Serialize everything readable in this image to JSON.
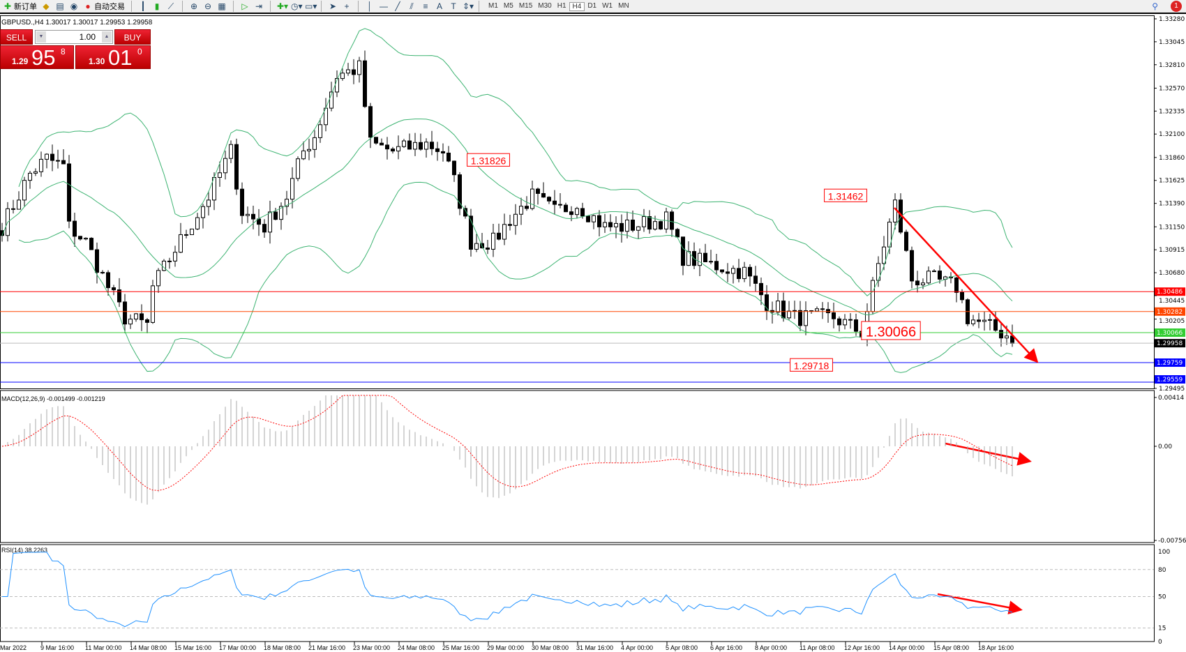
{
  "toolbar": {
    "new_order": "新订单",
    "auto_trading": "自动交易",
    "timeframes": [
      "M1",
      "M5",
      "M15",
      "M30",
      "H1",
      "H4",
      "D1",
      "W1",
      "MN"
    ],
    "active_timeframe": "H4",
    "notifications": "1"
  },
  "chart": {
    "title": "GBPUSD.,H4  1.30017 1.30017 1.29953 1.29958",
    "trade": {
      "sell": "SELL",
      "buy": "BUY",
      "lot": "1.00",
      "bid_prefix": "1.29",
      "bid_big": "95",
      "bid_sup": "8",
      "ask_prefix": "1.30",
      "ask_big": "01",
      "ask_sup": "0"
    },
    "price_labels": [
      "1.33280",
      "1.33045",
      "1.32810",
      "1.32570",
      "1.32335",
      "1.32100",
      "1.31860",
      "1.31625",
      "1.31390",
      "1.31150",
      "1.30915",
      "1.30680",
      "1.30445",
      "1.30205",
      "1.29495"
    ],
    "hlines": [
      {
        "price": 1.30486,
        "label": "1.30486",
        "color": "#ff0000"
      },
      {
        "price": 1.30282,
        "label": "1.30282",
        "color": "#ff4500"
      },
      {
        "price": 1.30066,
        "label": "1.30066",
        "color": "#32cd32"
      },
      {
        "price": 1.29958,
        "label": "1.29958",
        "color": "#000000"
      },
      {
        "price": 1.29759,
        "label": "1.29759",
        "color": "#0000ff"
      },
      {
        "price": 1.29559,
        "label": "1.29559",
        "color": "#0000ff"
      }
    ],
    "annotations": [
      "1.31826",
      "1.31462",
      "1.30066",
      "1.29718"
    ],
    "close_path": [
      [
        0,
        1.31151
      ],
      [
        5,
        1.31693
      ],
      [
        8,
        1.31848
      ],
      [
        11,
        1.3177
      ],
      [
        12,
        1.31151
      ],
      [
        15,
        1.30996
      ],
      [
        19,
        1.30532
      ],
      [
        22,
        1.30222
      ],
      [
        26,
        1.30145
      ],
      [
        27,
        1.30532
      ],
      [
        31,
        1.30919
      ],
      [
        37,
        1.31461
      ],
      [
        41,
        1.31925
      ],
      [
        43,
        1.31306
      ],
      [
        47,
        1.31151
      ],
      [
        51,
        1.31461
      ],
      [
        54,
        1.31925
      ],
      [
        56,
        1.3208
      ],
      [
        60,
        1.32699
      ],
      [
        64,
        1.32777
      ],
      [
        66,
        1.32002
      ],
      [
        70,
        1.31925
      ],
      [
        76,
        1.32002
      ],
      [
        79,
        1.31925
      ],
      [
        81,
        1.31615
      ],
      [
        84,
        1.30996
      ],
      [
        88,
        1.30996
      ],
      [
        91,
        1.31228
      ],
      [
        95,
        1.31461
      ],
      [
        99,
        1.31306
      ],
      [
        103,
        1.31383
      ],
      [
        108,
        1.31151
      ],
      [
        112,
        1.31151
      ],
      [
        119,
        1.31228
      ],
      [
        122,
        1.30841
      ],
      [
        127,
        1.30764
      ],
      [
        133,
        1.30687
      ],
      [
        137,
        1.30377
      ],
      [
        142,
        1.30222
      ],
      [
        149,
        1.30222
      ],
      [
        154,
        1.30067
      ],
      [
        157,
        1.30764
      ],
      [
        160,
        1.31383
      ],
      [
        163,
        1.30609
      ],
      [
        167,
        1.30609
      ],
      [
        171,
        1.30532
      ],
      [
        173,
        1.30222
      ],
      [
        176,
        1.30145
      ],
      [
        182,
        1.2999
      ]
    ],
    "bollinger_color": "#3cb371",
    "arrow_color": "#ff0000"
  },
  "macd": {
    "label": "MACD(12,26,9) -0.001499 -0.001219",
    "scale": [
      "0.00414",
      "0.00",
      "-0.007564"
    ]
  },
  "rsi": {
    "label": "RSI(14) 38.2263",
    "scale": [
      "100",
      "80",
      "50",
      "15",
      "0"
    ],
    "color": "#1e90ff"
  },
  "time_axis": [
    "Mar 2022",
    "9 Mar 16:00",
    "11 Mar 00:00",
    "14 Mar 08:00",
    "15 Mar 16:00",
    "17 Mar 00:00",
    "18 Mar 08:00",
    "21 Mar 16:00",
    "23 Mar 00:00",
    "24 Mar 08:00",
    "25 Mar 16:00",
    "29 Mar 00:00",
    "30 Mar 08:00",
    "31 Mar 16:00",
    "4 Apr 00:00",
    "5 Apr 08:00",
    "6 Apr 16:00",
    "8 Apr 00:00",
    "11 Apr 08:00",
    "12 Apr 16:00",
    "14 Apr 00:00",
    "15 Apr 08:00",
    "18 Apr 16:00"
  ]
}
